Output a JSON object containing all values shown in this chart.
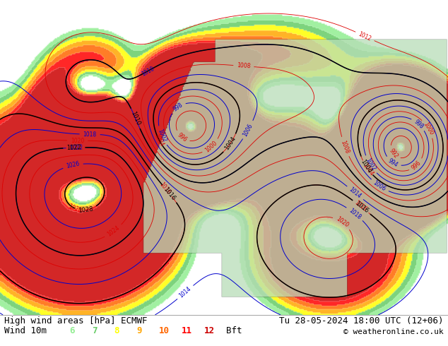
{
  "title_left": "High wind areas [hPa] ECMWF",
  "title_right": "Tu 28-05-2024 18:00 UTC (12+06)",
  "subtitle_left": "Wind 10m",
  "subtitle_right": "© weatheronline.co.uk",
  "legend_numbers": [
    "6",
    "7",
    "8",
    "9",
    "10",
    "11",
    "12"
  ],
  "legend_colors": [
    "#90ee90",
    "#66cc66",
    "#ffff00",
    "#ffa500",
    "#ff6600",
    "#ff0000",
    "#cc0000"
  ],
  "legend_suffix": "Bft",
  "bg_color": "#ffffff",
  "ocean_color": "#c8dff0",
  "land_color": [
    0.72,
    0.87,
    0.72
  ],
  "font_size_title": 9,
  "font_size_legend": 9,
  "font_size_footer": 8
}
